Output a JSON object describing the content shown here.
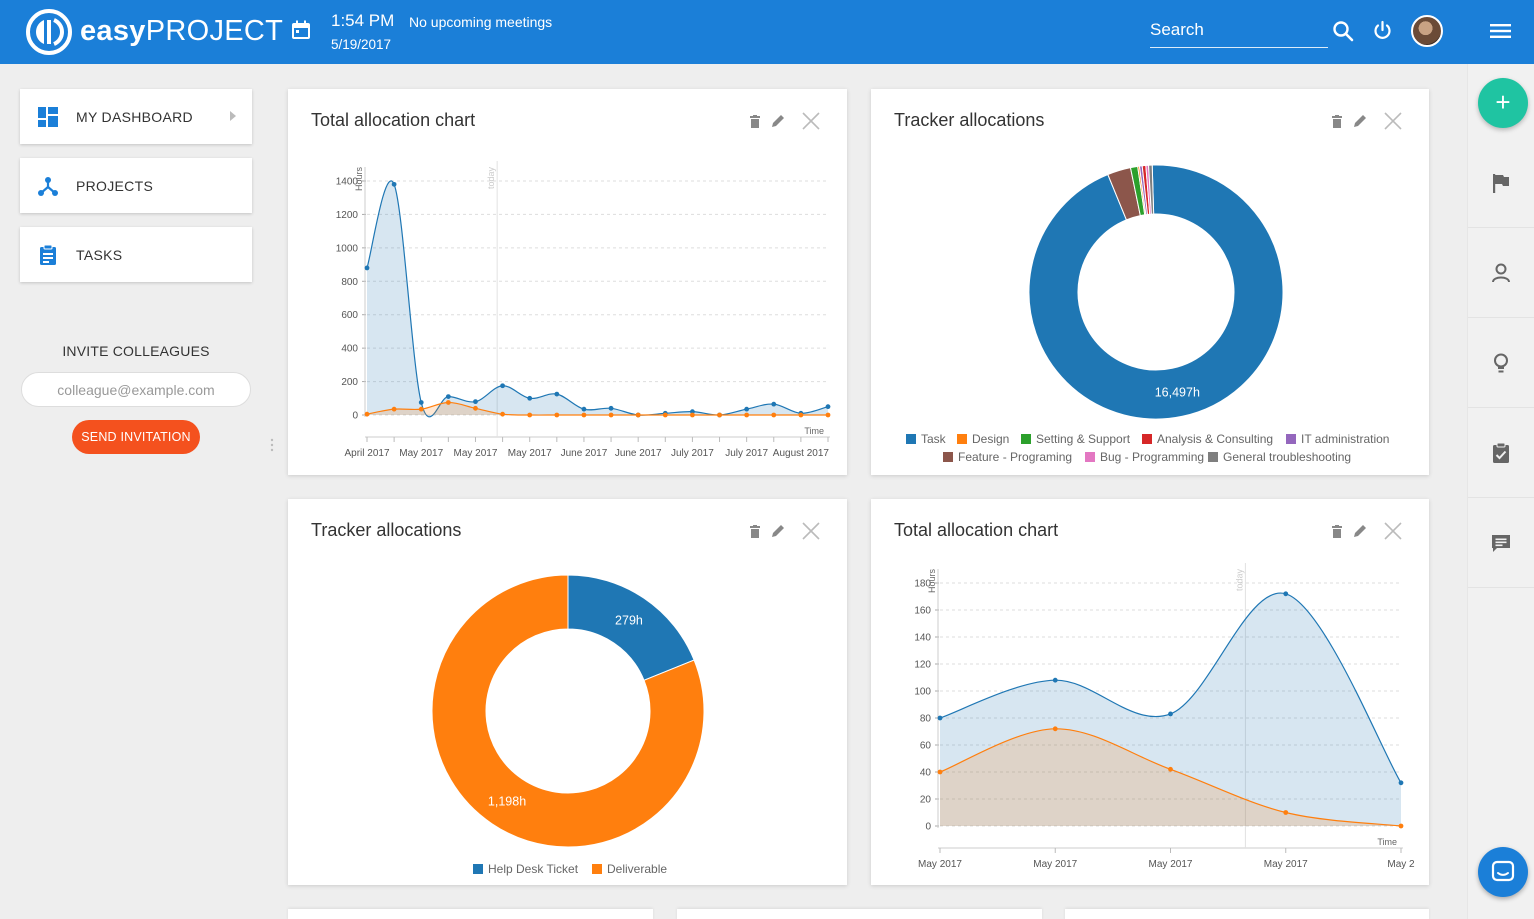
{
  "header": {
    "brand_bold": "easy",
    "brand_light": "PROJECT",
    "time": "1:54 PM",
    "date": "5/19/2017",
    "meetings": "No upcoming meetings",
    "search_placeholder": "Search"
  },
  "sidebar": {
    "items": [
      {
        "label": "MY DASHBOARD",
        "icon": "dashboard-icon"
      },
      {
        "label": "PROJECTS",
        "icon": "projects-icon"
      },
      {
        "label": "TASKS",
        "icon": "tasks-icon"
      }
    ],
    "invite_title": "INVITE COLLEAGUES",
    "invite_placeholder": "colleague@example.com",
    "send_label": "SEND INVITATION"
  },
  "colors": {
    "primary": "#1b7fd8",
    "accent": "#f4511e",
    "fab": "#1fc4a2",
    "series_blue": "#1f77b4",
    "series_orange": "#ff7f0e"
  },
  "chart_data": [
    {
      "type": "area",
      "title": "Total allocation chart",
      "ylabel": "Hours",
      "xlabel": "Time",
      "today_label": "today",
      "ylim": [
        0,
        1400
      ],
      "yticks": [
        0,
        200,
        400,
        600,
        800,
        1000,
        1200,
        1400
      ],
      "x_tick_labels": [
        "April 2017",
        "May 2017",
        "May 2017",
        "May 2017",
        "June 2017",
        "June 2017",
        "July 2017",
        "July 2017",
        "August 2017"
      ],
      "x_tick_index": [
        0,
        2,
        4,
        6,
        8,
        10,
        12,
        14,
        16
      ],
      "series": [
        {
          "values": [
            880,
            1380,
            75,
            110,
            80,
            175,
            100,
            125,
            35,
            40,
            0,
            10,
            20,
            0,
            35,
            65,
            10,
            50
          ]
        },
        {
          "values": [
            5,
            35,
            35,
            75,
            40,
            5,
            0,
            0,
            0,
            0,
            0,
            0,
            0,
            0,
            0,
            0,
            0,
            0
          ]
        }
      ],
      "today_index": 4.8
    },
    {
      "type": "pie",
      "title": "Tracker allocations",
      "slices": [
        {
          "label": "Task",
          "value": 16497,
          "color": "#1f77b4"
        },
        {
          "label": "Design",
          "value": 40,
          "color": "#ff7f0e"
        },
        {
          "label": "Setting & Support",
          "value": 160,
          "color": "#2ca02c"
        },
        {
          "label": "Analysis & Consulting",
          "value": 80,
          "color": "#d62728"
        },
        {
          "label": "IT administration",
          "value": 60,
          "color": "#9467bd"
        },
        {
          "label": "Feature - Programing",
          "value": 520,
          "color": "#8c564b"
        },
        {
          "label": "Bug - Programming",
          "value": 60,
          "color": "#e377c2"
        },
        {
          "label": "General troubleshooting",
          "value": 80,
          "color": "#7f7f7f"
        }
      ],
      "order": [
        0,
        5,
        2,
        1,
        4,
        3,
        6,
        7
      ],
      "value_labels": [
        {
          "slice": 0,
          "text": "16,497h"
        }
      ]
    },
    {
      "type": "pie",
      "title": "Tracker allocations",
      "slices": [
        {
          "label": "Help Desk Ticket",
          "value": 279,
          "color": "#1f77b4"
        },
        {
          "label": "Deliverable",
          "value": 1198,
          "color": "#ff7f0e"
        }
      ],
      "value_labels": [
        {
          "slice": 0,
          "text": "279h"
        },
        {
          "slice": 1,
          "text": "1,198h"
        }
      ]
    },
    {
      "type": "area",
      "title": "Total allocation chart",
      "ylabel": "Hours",
      "xlabel": "Time",
      "today_label": "today",
      "ylim": [
        0,
        180
      ],
      "yticks": [
        0,
        20,
        40,
        60,
        80,
        100,
        120,
        140,
        160,
        180
      ],
      "x_tick_labels": [
        "May 2017",
        "May 2017",
        "May 2017",
        "May 2017",
        "May 2"
      ],
      "x_tick_index": [
        0,
        1,
        2,
        3,
        4
      ],
      "series": [
        {
          "values": [
            80,
            108,
            83,
            172,
            32
          ]
        },
        {
          "values": [
            40,
            72,
            42,
            10,
            0
          ]
        }
      ],
      "today_index": 2.65
    }
  ]
}
